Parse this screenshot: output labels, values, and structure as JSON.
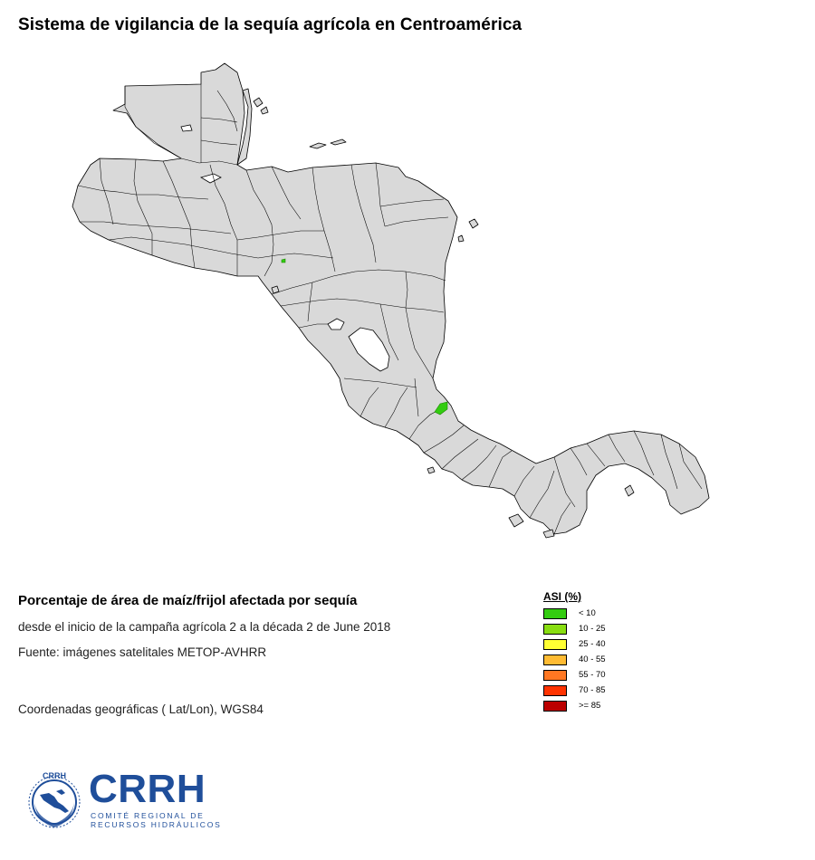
{
  "title": "Sistema de vigilancia de la sequía agrícola en Centroamérica",
  "info": {
    "heading": "Porcentaje de área de maíz/frijol afectada por sequía",
    "period": "desde el inicio de la campaña agrícola 2 a la década 2 de June 2018",
    "source": "Fuente: imágenes satelitales METOP-AVHRR",
    "coordinates": "Coordenadas geográficas ( Lat/Lon), WGS84"
  },
  "legend": {
    "title": "ASI (%)",
    "items": [
      {
        "label": "< 10",
        "color": "#33cc11"
      },
      {
        "label": "10 - 25",
        "color": "#88dd11"
      },
      {
        "label": "25 - 40",
        "color": "#ffff33"
      },
      {
        "label": "40 - 55",
        "color": "#ffbb33"
      },
      {
        "label": "55 - 70",
        "color": "#ff7722"
      },
      {
        "label": "70 - 85",
        "color": "#ff3300"
      },
      {
        "label": ">= 85",
        "color": "#bb0000"
      }
    ]
  },
  "map": {
    "land_color": "#d9d9d9",
    "border_color": "#000000",
    "lake_color": "#ffffff",
    "highlight_color": "#33cc11"
  },
  "logo": {
    "acronym": "CRRH",
    "emblem_text": "CRRH",
    "line1": "COMITÉ   REGIONAL   DE",
    "line2": "RECURSOS HIDRÁULICOS",
    "color": "#1f4e9a"
  }
}
